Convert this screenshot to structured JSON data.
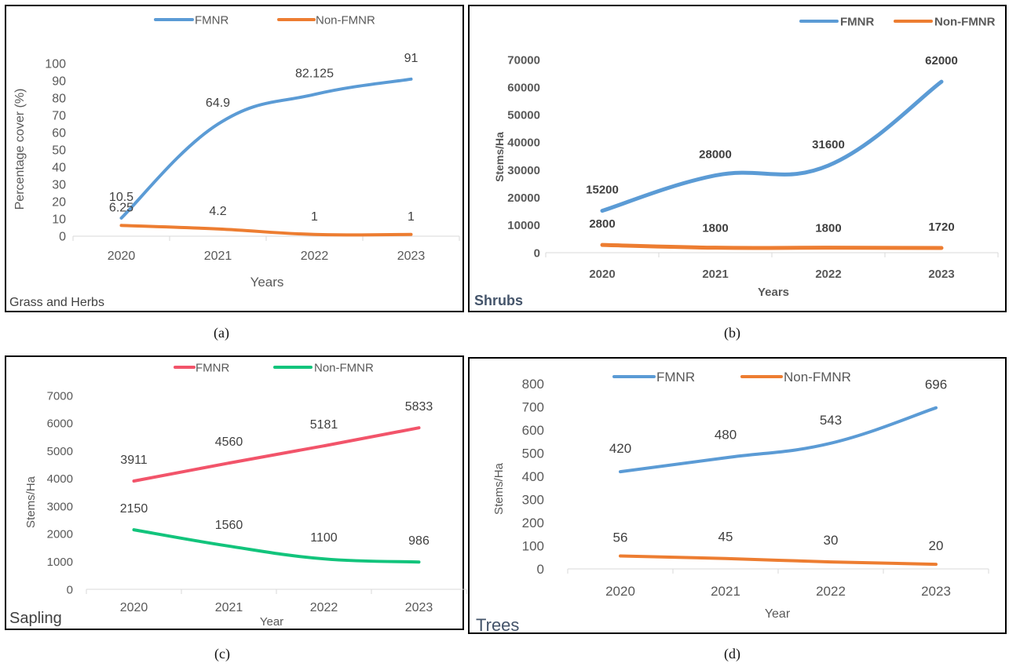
{
  "chart_data": [
    {
      "type": "line",
      "panel_title": "Grass and Herbs",
      "caption": "(a)",
      "xlabel": "Years",
      "ylabel": "Percentage cover (%)",
      "categories": [
        "2020",
        "2021",
        "2022",
        "2023"
      ],
      "ylim": [
        0,
        100
      ],
      "yticks": [
        "0",
        "10",
        "20",
        "30",
        "40",
        "50",
        "60",
        "70",
        "80",
        "90",
        "100"
      ],
      "series": [
        {
          "name": "FMNR",
          "color": "#5b9bd5",
          "values": [
            10.5,
            64.9,
            82.125,
            91
          ],
          "labels": [
            "10.5",
            "64.9",
            "82.125",
            "91"
          ]
        },
        {
          "name": "Non-FMNR",
          "color": "#ed7d31",
          "values": [
            6.25,
            4.2,
            1,
            1
          ],
          "labels": [
            "6.25",
            "4.2",
            "1",
            "1"
          ]
        }
      ],
      "legend": "top"
    },
    {
      "type": "line",
      "panel_title": "Shrubs",
      "caption": "(b)",
      "xlabel": "Years",
      "ylabel": "Stems/Ha",
      "categories": [
        "2020",
        "2021",
        "2022",
        "2023"
      ],
      "ylim": [
        0,
        70000
      ],
      "yticks": [
        "0",
        "10000",
        "20000",
        "30000",
        "40000",
        "50000",
        "60000",
        "70000"
      ],
      "series": [
        {
          "name": "FMNR",
          "color": "#5b9bd5",
          "values": [
            15200,
            28000,
            31600,
            62000
          ],
          "labels": [
            "15200",
            "28000",
            "31600",
            "62000"
          ]
        },
        {
          "name": "Non-FMNR",
          "color": "#ed7d31",
          "values": [
            2800,
            1800,
            1800,
            1720
          ],
          "labels": [
            "2800",
            "1800",
            "1800",
            "1720"
          ]
        }
      ],
      "legend": "top-right"
    },
    {
      "type": "line",
      "panel_title": "Sapling",
      "caption": "(c)",
      "xlabel": "Year",
      "ylabel": "Stems/Ha",
      "categories": [
        "2020",
        "2021",
        "2022",
        "2023"
      ],
      "ylim": [
        0,
        7000
      ],
      "yticks": [
        "0",
        "1000",
        "2000",
        "3000",
        "4000",
        "5000",
        "6000",
        "7000"
      ],
      "series": [
        {
          "name": "FMNR",
          "color": "#f2546a",
          "values": [
            3911,
            4560,
            5181,
            5833
          ],
          "labels": [
            "3911",
            "4560",
            "5181",
            "5833"
          ]
        },
        {
          "name": "Non-FMNR",
          "color": "#12c47c",
          "values": [
            2150,
            1560,
            1100,
            986
          ],
          "labels": [
            "2150",
            "1560",
            "1100",
            "986"
          ]
        }
      ],
      "legend": "top"
    },
    {
      "type": "line",
      "panel_title": "Trees",
      "caption": "(d)",
      "xlabel": "Year",
      "ylabel": "Stems/Ha",
      "categories": [
        "2020",
        "2021",
        "2022",
        "2023"
      ],
      "ylim": [
        0,
        800
      ],
      "yticks": [
        "0",
        "100",
        "200",
        "300",
        "400",
        "500",
        "600",
        "700",
        "800"
      ],
      "series": [
        {
          "name": "FMNR",
          "color": "#5b9bd5",
          "values": [
            420,
            480,
            543,
            696
          ],
          "labels": [
            "420",
            "480",
            "543",
            "696"
          ]
        },
        {
          "name": "Non-FMNR",
          "color": "#ed7d31",
          "values": [
            56,
            45,
            30,
            20
          ],
          "labels": [
            "56",
            "45",
            "30",
            "20"
          ]
        }
      ],
      "legend": "top"
    }
  ]
}
